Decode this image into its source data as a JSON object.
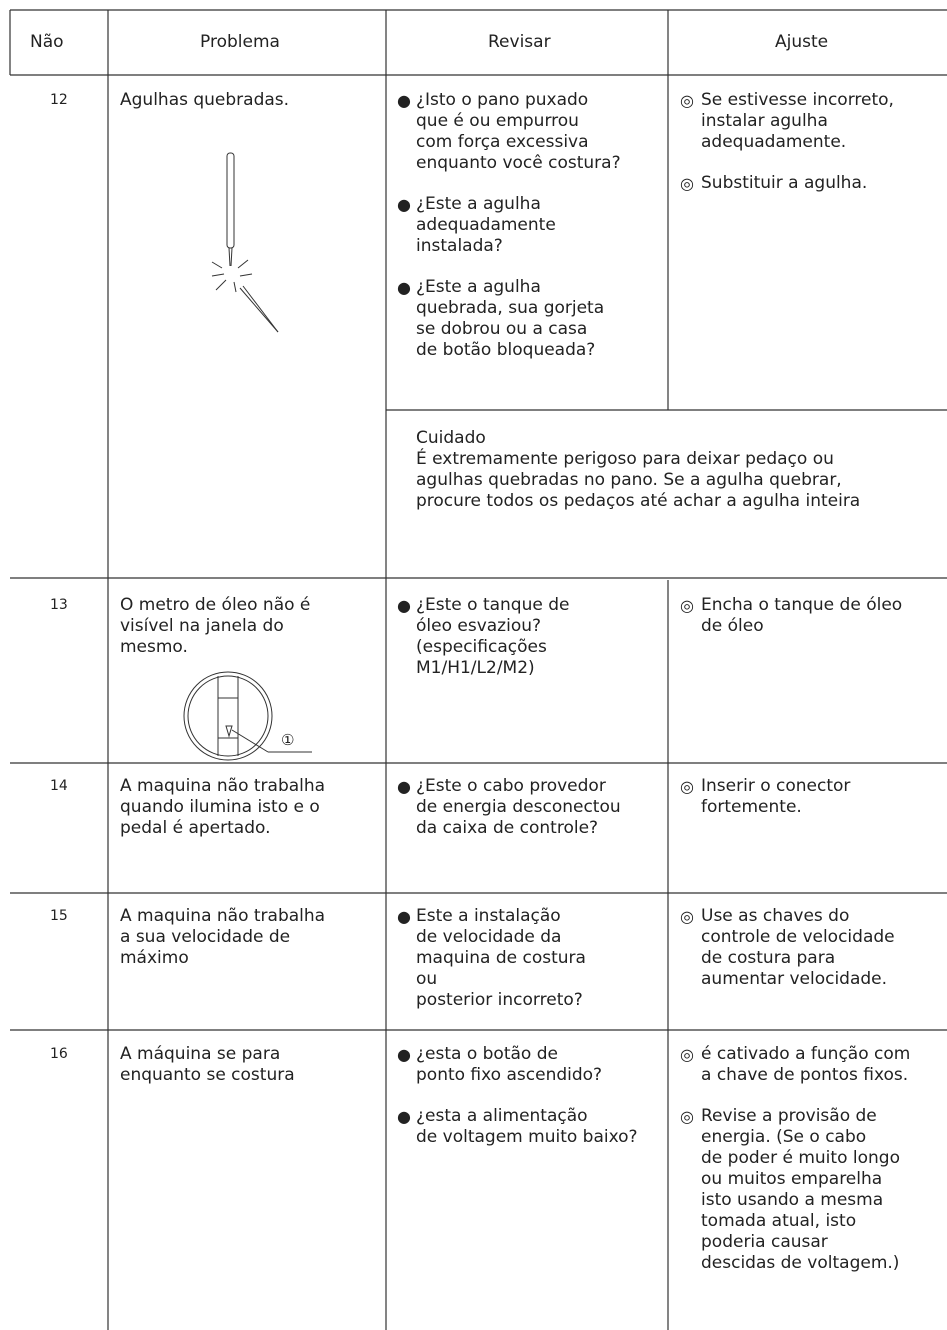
{
  "header": [
    "Não",
    "Problema",
    "Revisar",
    "Ajuste"
  ],
  "rows": [
    {
      "no": "12",
      "problem": [
        "Agulhas quebradas."
      ],
      "check": [
        [
          "¿Isto o pano puxado",
          "que é ou empurrou",
          "com força excessiva",
          "enquanto você costura?"
        ],
        [
          "¿Este a agulha",
          "adequadamente",
          "instalada?"
        ],
        [
          "¿Este a agulha",
          "quebrada, sua gorjeta",
          "se dobrou ou a casa",
          "de botão bloqueada?"
        ]
      ],
      "adjust": [
        [
          "Se estivesse incorreto,",
          "instalar agulha",
          "adequadamente."
        ],
        [
          "Substituir a agulha."
        ]
      ],
      "caution": [
        "Cuidado",
        "É extremamente perigoso para deixar pedaço ou",
        "agulhas quebradas no pano. Se a agulha quebrar,",
        "procure todos os pedaços até achar a agulha inteira"
      ]
    },
    {
      "no": "13",
      "problem": [
        "O metro de óleo não é",
        "visível na janela do",
        "mesmo."
      ],
      "figure_label": "①",
      "check": [
        [
          "¿Este o tanque de",
          "óleo esvaziou?",
          "(especificações",
          "M1/H1/L2/M2)"
        ]
      ],
      "adjust": [
        [
          "Encha o tanque de óleo",
          "de óleo"
        ]
      ]
    },
    {
      "no": "14",
      "problem": [
        "A maquina não trabalha",
        "quando ilumina isto e o",
        "pedal é apertado."
      ],
      "check": [
        [
          "¿Este o cabo provedor",
          "de energia desconectou",
          "da caixa de controle?"
        ]
      ],
      "adjust": [
        [
          "Inserir o conector",
          "fortemente."
        ]
      ]
    },
    {
      "no": "15",
      "problem": [
        "A maquina não trabalha",
        "a sua velocidade de",
        "máximo"
      ],
      "check": [
        [
          "Este a instalação",
          "de velocidade da",
          "maquina de costura",
          "ou",
          "posterior incorreto?"
        ]
      ],
      "adjust": [
        [
          "Use as chaves do",
          "controle de velocidade",
          "de costura para",
          "aumentar velocidade."
        ]
      ]
    },
    {
      "no": "16",
      "problem": [
        "A máquina se para",
        "enquanto se costura"
      ],
      "check": [
        [
          "¿esta o botão de",
          "ponto fixo ascendido?"
        ],
        [
          "¿esta a alimentação",
          "de voltagem muito baixo?"
        ]
      ],
      "adjust": [
        [
          "é cativado a função com",
          "a chave de pontos fixos."
        ],
        [
          "Revise a provisão de",
          "energia. (Se o cabo",
          "de poder é muito longo",
          "ou muitos emparelha",
          "isto usando a mesma",
          "tomada atual, isto",
          "poderia causar",
          "descidas de voltagem.)"
        ]
      ]
    }
  ]
}
